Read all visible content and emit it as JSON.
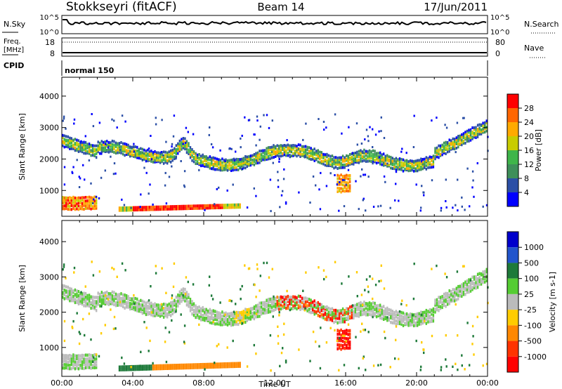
{
  "header": {
    "station": "Stokkseyri (fitACF)",
    "beam": "Beam 14",
    "date": "17/Jun/2011"
  },
  "noise_panel": {
    "left_label": "N.Sky",
    "right_label": "N.Search",
    "tick_top": "10^5",
    "tick_bottom": "10^0"
  },
  "freq_panel": {
    "left_label_1": "Freq.",
    "left_label_2": "[MHz]",
    "right_label": "Nave",
    "left_ticks": [
      "18",
      "8"
    ],
    "right_ticks": [
      "80",
      "0"
    ]
  },
  "cpid_panel": {
    "label": "CPID",
    "mode": "normal 150"
  },
  "colors": {
    "power": [
      "#0000ff",
      "#2b4fa6",
      "#3e8f5a",
      "#3fb54a",
      "#c8cc00",
      "#ffaa00",
      "#ff6600",
      "#ff0000"
    ],
    "velocity": [
      "#0000cc",
      "#2255cc",
      "#1e7a3a",
      "#55cc33",
      "#bbbbbb",
      "#ffcc00",
      "#ff8800",
      "#ff3300",
      "#ff0000"
    ]
  },
  "chart_data": [
    {
      "type": "heatmap",
      "name": "power",
      "ylabel": "Slant Range [km]",
      "ylim": [
        180,
        4600
      ],
      "yticks": [
        "1000",
        "2000",
        "3000",
        "4000"
      ],
      "xlim": [
        0,
        24
      ],
      "xticks": [
        "00:00",
        "04:00",
        "08:00",
        "12:00",
        "16:00",
        "20:00",
        "00:00"
      ],
      "colorbar_label": "Power [dB]",
      "colorbar_ticks": [
        "4",
        "8",
        "12",
        "16",
        "20",
        "24",
        "28"
      ],
      "range_dB": [
        0,
        32
      ],
      "features": [
        {
          "t0": 0.0,
          "t1": 24.0,
          "r": 2050,
          "level": 14,
          "desc": "main F-region echo band"
        },
        {
          "t0": 0.0,
          "t1": 2.0,
          "r": 550,
          "level": 26
        },
        {
          "t0": 3.2,
          "t1": 10.0,
          "r": 400,
          "level": 28
        },
        {
          "t0": 15.6,
          "t1": 16.2,
          "r": 1250,
          "level": 24
        }
      ]
    },
    {
      "type": "heatmap",
      "name": "velocity",
      "ylabel": "Slant Range [km]",
      "xlabel": "Time UT",
      "ylim": [
        180,
        4600
      ],
      "yticks": [
        "1000",
        "2000",
        "3000",
        "4000"
      ],
      "xlim": [
        0,
        24
      ],
      "xticks": [
        "00:00",
        "04:00",
        "08:00",
        "12:00",
        "16:00",
        "20:00",
        "00:00"
      ],
      "colorbar_label": "Velocity [m s-1]",
      "colorbar_ticks": [
        "1000",
        "500",
        "100",
        "25",
        "-25",
        "-100",
        "-500",
        "-1000"
      ],
      "features": [
        {
          "t0": 0.0,
          "t1": 24.0,
          "r": 2050,
          "velocity": 0
        },
        {
          "t0": 12.0,
          "t1": 16.2,
          "r": 1800,
          "velocity": -700
        },
        {
          "t0": 3.5,
          "t1": 10.0,
          "r": 400,
          "velocity": -150
        }
      ]
    }
  ]
}
